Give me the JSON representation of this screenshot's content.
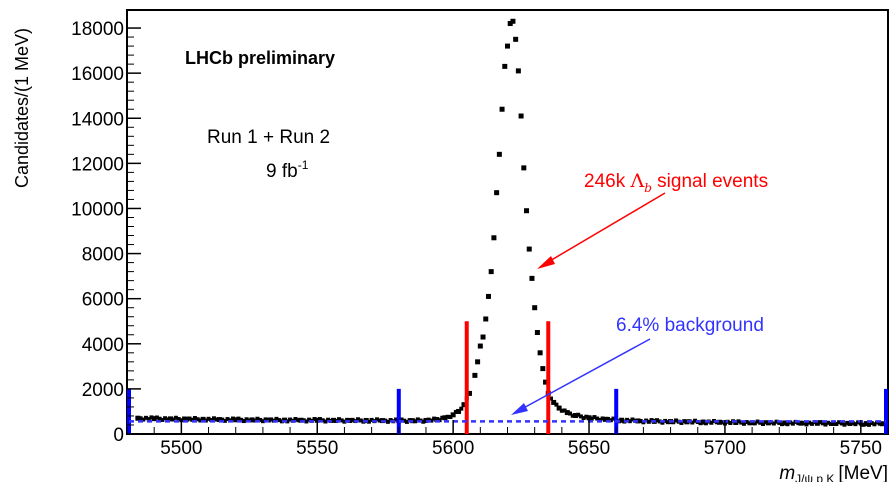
{
  "chart_data": {
    "type": "scatter",
    "ylabel": "Candidates/(1 MeV)",
    "xlabel": {
      "main": "m",
      "subscript": "J/ψ p K",
      "unit": "[MeV]"
    },
    "xlim": [
      5480,
      5760
    ],
    "ylim": [
      0,
      18800
    ],
    "x_ticks": [
      5500,
      5550,
      5600,
      5650,
      5700,
      5750
    ],
    "y_ticks": [
      0,
      2000,
      4000,
      6000,
      8000,
      10000,
      12000,
      14000,
      16000,
      18000
    ],
    "annotations": {
      "experiment": "LHCb preliminary",
      "run": "Run 1 + Run 2",
      "lumi_value": "9 fb",
      "lumi_exp": "-1",
      "signal_prefix": "246k ",
      "signal_symbol": "Λ",
      "signal_sub": "b",
      "signal_suffix": " signal events",
      "background": "6.4% background"
    },
    "signal_window": [
      5605,
      5635
    ],
    "sideband_lines": [
      5480,
      5580,
      5660,
      5760
    ],
    "background_level": 560,
    "points": [
      [
        5484,
        700
      ],
      [
        5490,
        680
      ],
      [
        5496,
        670
      ],
      [
        5502,
        660
      ],
      [
        5508,
        650
      ],
      [
        5514,
        640
      ],
      [
        5520,
        630
      ],
      [
        5526,
        625
      ],
      [
        5532,
        620
      ],
      [
        5538,
        615
      ],
      [
        5544,
        610
      ],
      [
        5550,
        610
      ],
      [
        5556,
        605
      ],
      [
        5562,
        600
      ],
      [
        5568,
        600
      ],
      [
        5574,
        595
      ],
      [
        5580,
        590
      ],
      [
        5585,
        590
      ],
      [
        5590,
        600
      ],
      [
        5594,
        640
      ],
      [
        5597,
        720
      ],
      [
        5600,
        850
      ],
      [
        5602,
        1000
      ],
      [
        5604,
        1300
      ],
      [
        5606,
        1800
      ],
      [
        5608,
        2600
      ],
      [
        5609,
        3200
      ],
      [
        5610,
        3900
      ],
      [
        5611,
        4300
      ],
      [
        5612,
        5100
      ],
      [
        5613,
        6100
      ],
      [
        5614,
        7200
      ],
      [
        5615,
        8700
      ],
      [
        5616,
        10700
      ],
      [
        5617,
        12400
      ],
      [
        5618,
        14400
      ],
      [
        5619,
        16300
      ],
      [
        5620,
        17200
      ],
      [
        5621,
        18200
      ],
      [
        5622,
        18300
      ],
      [
        5623,
        17500
      ],
      [
        5624,
        16100
      ],
      [
        5625,
        14100
      ],
      [
        5626,
        11800
      ],
      [
        5627,
        9900
      ],
      [
        5628,
        8200
      ],
      [
        5629,
        6900
      ],
      [
        5630,
        5600
      ],
      [
        5631,
        4500
      ],
      [
        5632,
        3600
      ],
      [
        5633,
        2900
      ],
      [
        5634,
        2300
      ],
      [
        5635,
        1800
      ],
      [
        5637,
        1400
      ],
      [
        5639,
        1150
      ],
      [
        5642,
        950
      ],
      [
        5645,
        820
      ],
      [
        5650,
        720
      ],
      [
        5656,
        650
      ],
      [
        5662,
        610
      ],
      [
        5668,
        580
      ],
      [
        5674,
        560
      ],
      [
        5680,
        550
      ],
      [
        5686,
        540
      ],
      [
        5692,
        530
      ],
      [
        5698,
        520
      ],
      [
        5704,
        510
      ],
      [
        5710,
        500
      ],
      [
        5716,
        495
      ],
      [
        5722,
        490
      ],
      [
        5728,
        480
      ],
      [
        5734,
        475
      ],
      [
        5740,
        470
      ],
      [
        5746,
        465
      ],
      [
        5752,
        460
      ],
      [
        5758,
        455
      ]
    ],
    "colors": {
      "signal": "#ff0000",
      "background": "#3333ff",
      "sideband": "#0000ff",
      "data": "#000000"
    }
  }
}
